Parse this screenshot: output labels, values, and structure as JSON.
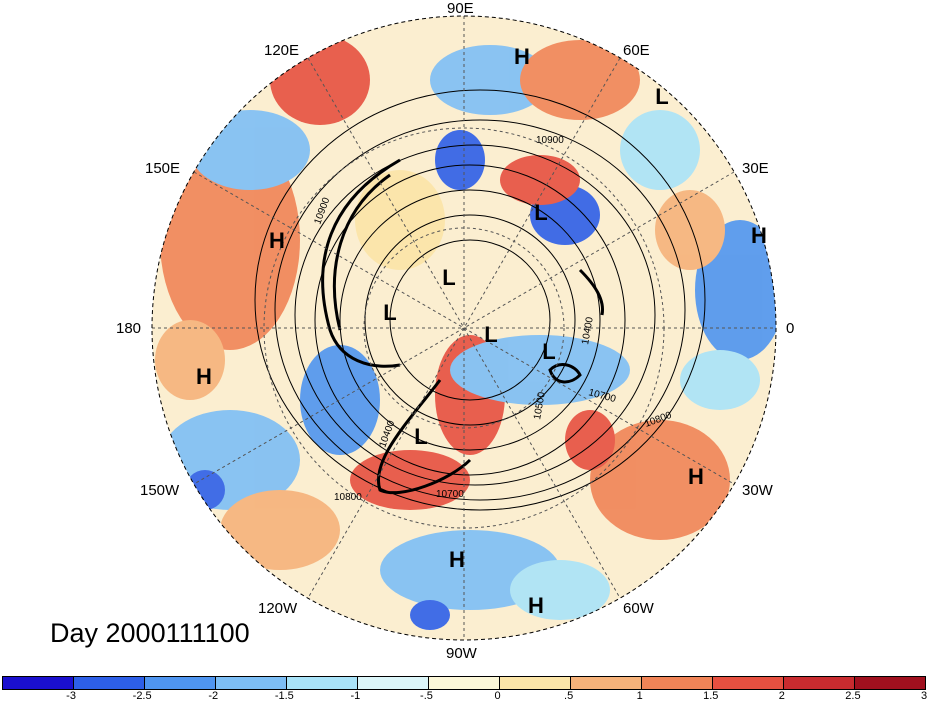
{
  "map_type": "north-polar-stereographic",
  "field_name": "",
  "title_label": "Day 2000111100",
  "longitude_labels": [
    "90E",
    "120E",
    "60E",
    "150E",
    "30E",
    "180",
    "0",
    "150W",
    "30W",
    "120W",
    "60W",
    "90W"
  ],
  "contour_labels": [
    "10900",
    "10900",
    "10800",
    "10800",
    "10700",
    "10700",
    "10500",
    "10400",
    "10400"
  ],
  "pressure_centers": [
    {
      "type": "H",
      "region": "northern Russia"
    },
    {
      "type": "L",
      "region": "Ural region"
    },
    {
      "type": "L",
      "region": "Scandinavia / Barents"
    },
    {
      "type": "H",
      "region": "eastern Europe"
    },
    {
      "type": "H",
      "region": "western Pacific"
    },
    {
      "type": "L",
      "region": "Arctic central"
    },
    {
      "type": "L",
      "region": "Arctic Siberia"
    },
    {
      "type": "L",
      "region": "Canadian Arctic"
    },
    {
      "type": "L",
      "region": "Greenland"
    },
    {
      "type": "H",
      "region": "central Pacific"
    },
    {
      "type": "L",
      "region": "Hudson Bay"
    },
    {
      "type": "H",
      "region": "North Atlantic"
    },
    {
      "type": "H",
      "region": "Gulf of Mexico"
    },
    {
      "type": "H",
      "region": "Caribbean"
    }
  ],
  "colorbar": {
    "colors": [
      "#1a0fcf",
      "#2d5fe8",
      "#4f95f0",
      "#7dbef5",
      "#a9e3f8",
      "#dcf6f9",
      "#fbf7d8",
      "#fbe5a8",
      "#f6b27a",
      "#f08457",
      "#e65040",
      "#c92b2f",
      "#a0101e"
    ],
    "tick_labels": [
      "-3",
      "-2.5",
      "-2",
      "-1.5",
      "-1",
      "-.5",
      "0",
      ".5",
      "1",
      "1.5",
      "2",
      "2.5",
      "3"
    ]
  }
}
